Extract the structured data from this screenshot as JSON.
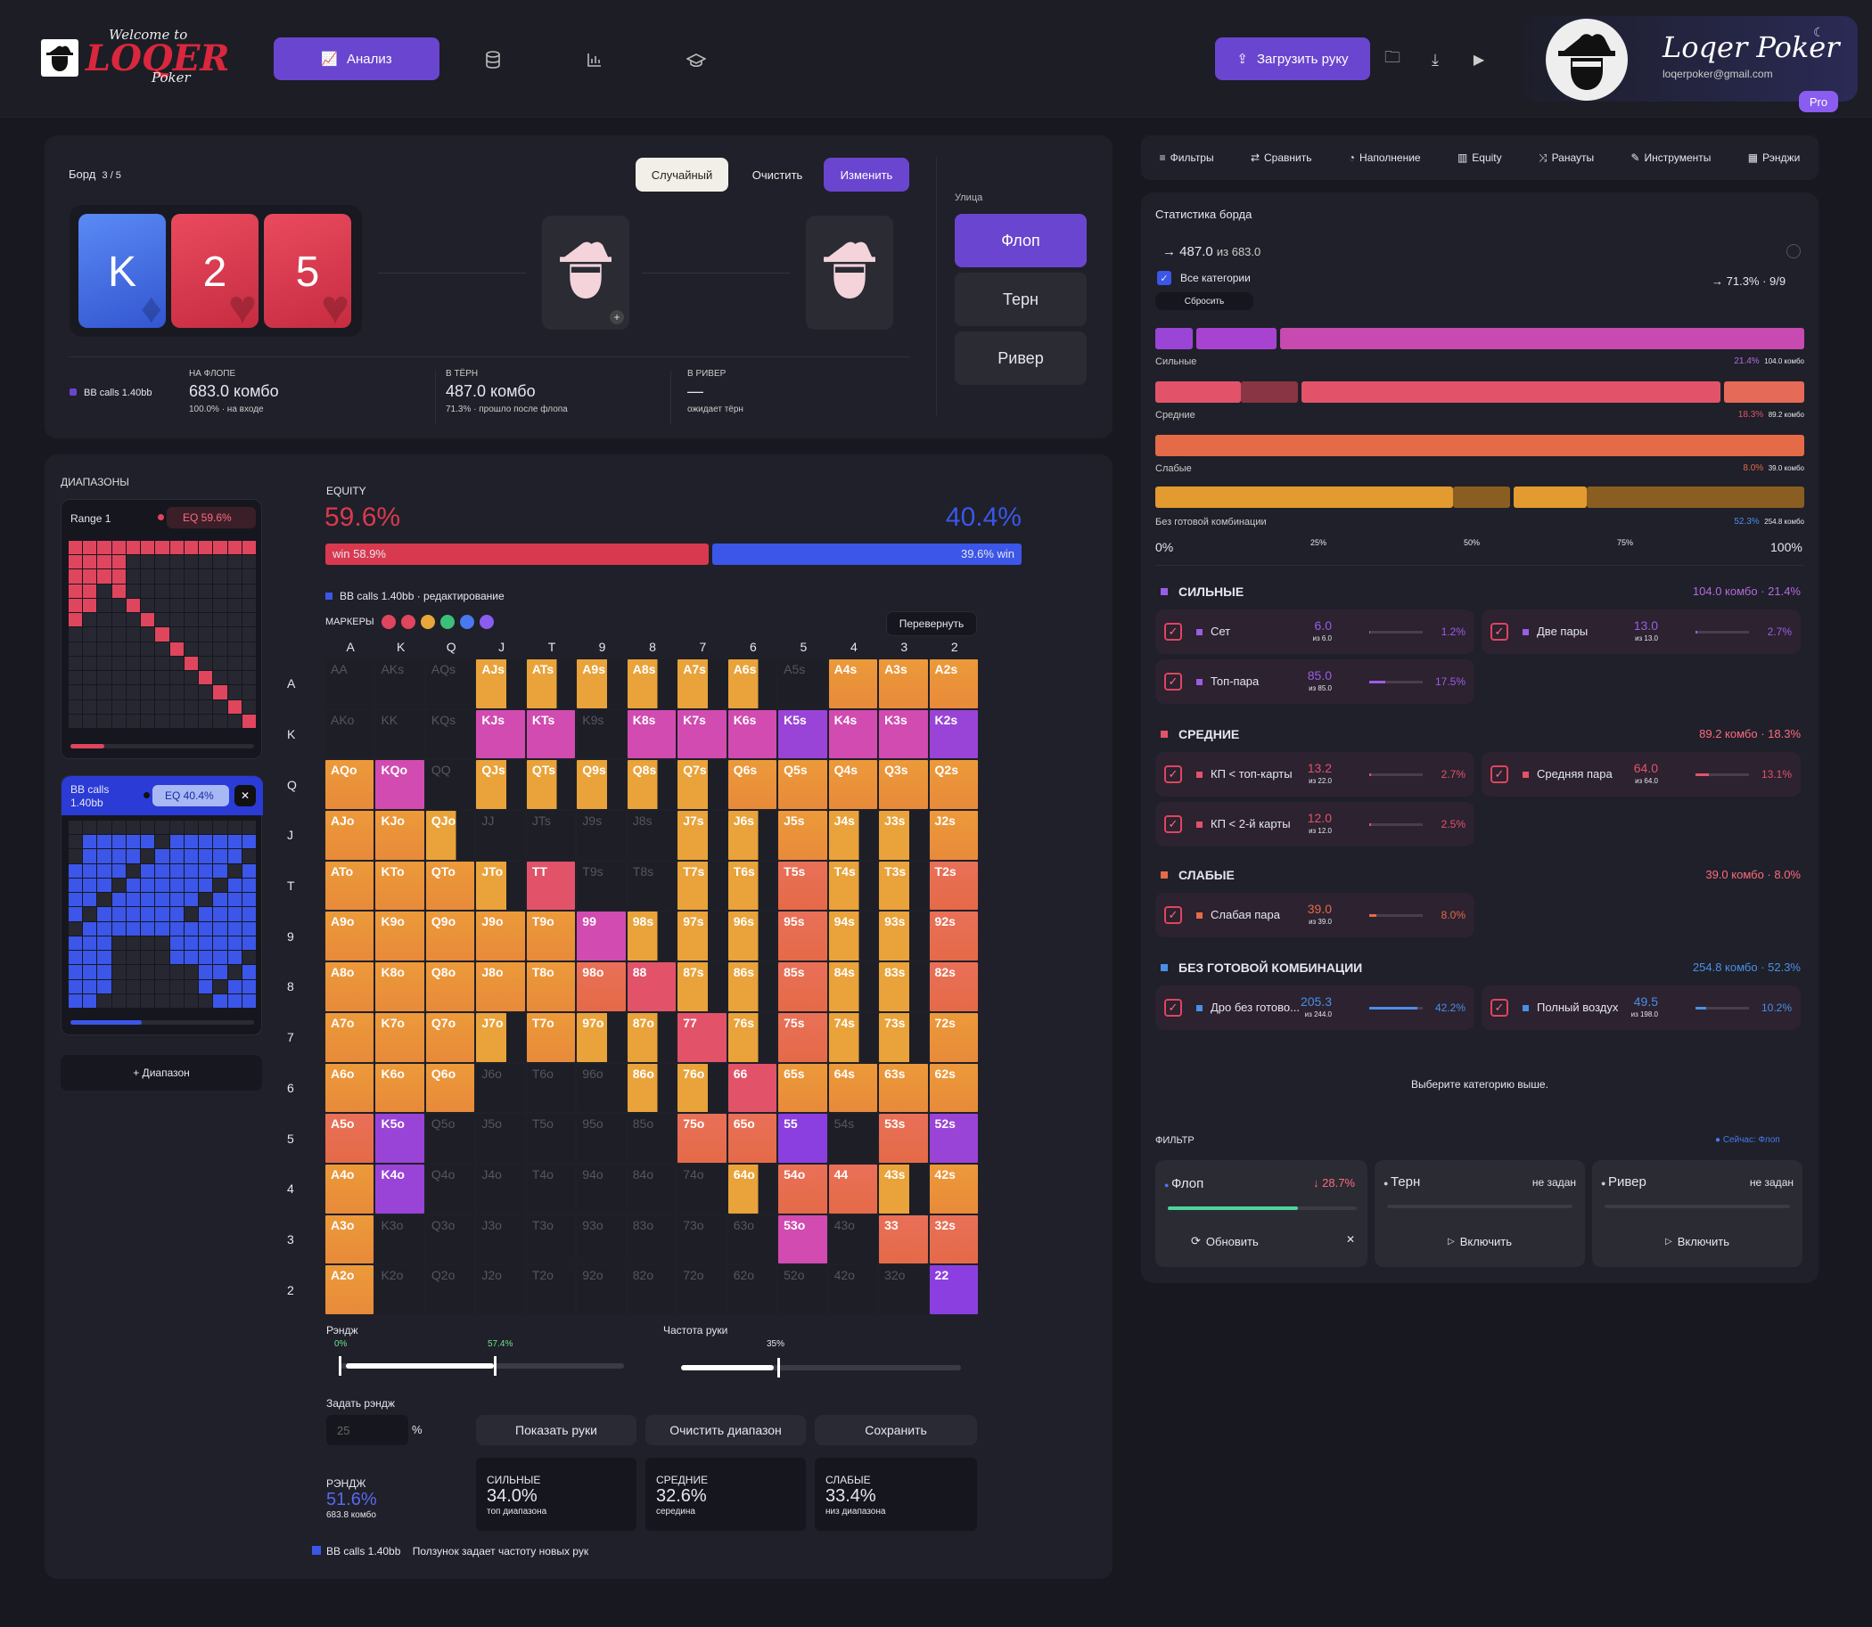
{
  "brand": {
    "logo_top": "Welcome to",
    "logo_main": "LOQER",
    "logo_sub": "Poker"
  },
  "nav": {
    "active_label": "Анализ"
  },
  "header": {
    "upload_label": "Загрузить руку",
    "profile_name": "Loqer Poker",
    "profile_email": "loqerpoker@gmail.com",
    "badge": "Pro"
  },
  "board": {
    "label": "Борд",
    "count": "3 / 5",
    "btn_random": "Случайный",
    "btn_clear": "Очистить",
    "btn_edit": "Изменить",
    "cards": [
      {
        "rank": "K",
        "suit": "♦",
        "color": "#3d6be6"
      },
      {
        "rank": "2",
        "suit": "♥",
        "color": "#d9394f"
      },
      {
        "rank": "5",
        "suit": "♥",
        "color": "#d9394f"
      }
    ],
    "street_label": "Улица",
    "streets": [
      "Флоп",
      "Терн",
      "Ривер"
    ],
    "legend": "BB calls 1.40bb",
    "stats": [
      {
        "label": "НА ФЛОПЕ",
        "value": "683.0 комбо",
        "sub": "100.0% · на входе"
      },
      {
        "label": "В ТЁРН",
        "value": "487.0 комбо",
        "sub": "71.3% · прошло после флопа"
      },
      {
        "label": "В РИВЕР",
        "value": "—",
        "sub": "ожидает тёрн"
      }
    ]
  },
  "ranges": {
    "title": "ДИАПАЗОНЫ",
    "r1_name": "Range 1",
    "r1_eq": "EQ 59.6%",
    "r2_name": "BB calls 1.40bb",
    "r2_eq": "EQ 40.4%",
    "add": "+ Диапазон"
  },
  "equity": {
    "title": "EQUITY",
    "left": "59.6%",
    "right": "40.4%",
    "win_left": "win 58.9%",
    "win_right": "39.6% win",
    "legend": "BB calls 1.40bb",
    "legend_sub": " · редактирование",
    "markers_label": "МАРКЕРЫ",
    "flip": "Перевернуть",
    "marker_colors": [
      "#e0455e",
      "#e0455e",
      "#e8a63a",
      "#3bbf7a",
      "#4a78f0",
      "#8a5cf0"
    ]
  },
  "matrix": {
    "headers": [
      "A",
      "K",
      "Q",
      "J",
      "T",
      "9",
      "8",
      "7",
      "6",
      "5",
      "4",
      "3",
      "2"
    ],
    "cells": [
      [
        "AA",
        "AKs",
        "AQs",
        "AJs",
        "ATs",
        "A9s",
        "A8s",
        "A7s",
        "A6s",
        "A5s",
        "A4s",
        "A3s",
        "A2s"
      ],
      [
        "AKo",
        "KK",
        "KQs",
        "KJs",
        "KTs",
        "K9s",
        "K8s",
        "K7s",
        "K6s",
        "K5s",
        "K4s",
        "K3s",
        "K2s"
      ],
      [
        "AQo",
        "KQo",
        "QQ",
        "QJs",
        "QTs",
        "Q9s",
        "Q8s",
        "Q7s",
        "Q6s",
        "Q5s",
        "Q4s",
        "Q3s",
        "Q2s"
      ],
      [
        "AJo",
        "KJo",
        "QJo",
        "JJ",
        "JTs",
        "J9s",
        "J8s",
        "J7s",
        "J6s",
        "J5s",
        "J4s",
        "J3s",
        "J2s"
      ],
      [
        "ATo",
        "KTo",
        "QTo",
        "JTo",
        "TT",
        "T9s",
        "T8s",
        "T7s",
        "T6s",
        "T5s",
        "T4s",
        "T3s",
        "T2s"
      ],
      [
        "A9o",
        "K9o",
        "Q9o",
        "J9o",
        "T9o",
        "99",
        "98s",
        "97s",
        "96s",
        "95s",
        "94s",
        "93s",
        "92s"
      ],
      [
        "A8o",
        "K8o",
        "Q8o",
        "J8o",
        "T8o",
        "98o",
        "88",
        "87s",
        "86s",
        "85s",
        "84s",
        "83s",
        "82s"
      ],
      [
        "A7o",
        "K7o",
        "Q7o",
        "J7o",
        "T7o",
        "97o",
        "87o",
        "77",
        "76s",
        "75s",
        "74s",
        "73s",
        "72s"
      ],
      [
        "A6o",
        "K6o",
        "Q6o",
        "J6o",
        "T6o",
        "96o",
        "86o",
        "76o",
        "66",
        "65s",
        "64s",
        "63s",
        "62s"
      ],
      [
        "A5o",
        "K5o",
        "Q5o",
        "J5o",
        "T5o",
        "95o",
        "85o",
        "75o",
        "65o",
        "55",
        "54s",
        "53s",
        "52s"
      ],
      [
        "A4o",
        "K4o",
        "Q4o",
        "J4o",
        "T4o",
        "94o",
        "84o",
        "74o",
        "64o",
        "54o",
        "44",
        "43s",
        "42s"
      ],
      [
        "A3o",
        "K3o",
        "Q3o",
        "J3o",
        "T3o",
        "93o",
        "83o",
        "73o",
        "63o",
        "53o",
        "43o",
        "33",
        "32s"
      ],
      [
        "A2o",
        "K2o",
        "Q2o",
        "J2o",
        "T2o",
        "92o",
        "82o",
        "72o",
        "62o",
        "52o",
        "42o",
        "32o",
        "22"
      ]
    ],
    "types": [
      "DDDYYYYYYDOOO",
      "DDDMMDMMMPMMP",
      "OMDYYYYYOOOOO",
      "OOYDDDDYYOYYO",
      "OOOYRDDYYSYYS",
      "OOOOOMYYYSYYS",
      "OOOOOSRYYSYYS",
      "OOOYOYYRYSYYO",
      "OOODDDYYROOOO",
      "SPDDDDDSSVDSP",
      "OPDDDDDDYSSYO",
      "ODDDDDDDDMDSS",
      "ODDDDDDDDDDDV"
    ]
  },
  "sliders": {
    "range_label": "Рэндж",
    "range_min": "0%",
    "range_max": "57.4%",
    "freq_label": "Частота руки",
    "freq_val": "35%"
  },
  "setrange": {
    "label": "Задать рэндж",
    "input": "25",
    "pct": "%",
    "btn_show": "Показать руки",
    "btn_clear": "Очистить диапазон",
    "btn_save": "Сохранить"
  },
  "summary": [
    {
      "label": "РЭНДЖ",
      "value": "51.6%",
      "sub": "683.8 комбо"
    },
    {
      "label": "СИЛЬНЫЕ",
      "value": "34.0%",
      "sub": "топ диапазона"
    },
    {
      "label": "СРЕДНИЕ",
      "value": "32.6%",
      "sub": "середина"
    },
    {
      "label": "СЛАБЫЕ",
      "value": "33.4%",
      "sub": "низ диапазона"
    }
  ],
  "footer": {
    "legend": "BB calls 1.40bb",
    "note": "Ползунок задает частоту новых рук"
  },
  "tabs": [
    "Фильтры",
    "Сравнить",
    "Наполнение",
    "Equity",
    "Ранауты",
    "Инструменты",
    "Рэнджи"
  ],
  "stats": {
    "title": "Статистика борда",
    "combos": "487.0",
    "combos_of": "из 683.0",
    "all_cats": "Все категории",
    "reset": "Сбросить",
    "right": "71.3% · 9/9",
    "bars": [
      {
        "name": "Сильные",
        "pct": "21.4%",
        "cnt": "104.0 комбо",
        "color": "#c64ab0"
      },
      {
        "name": "Средние",
        "pct": "18.3%",
        "cnt": "89.2 комбо",
        "color": "#e2536a"
      },
      {
        "name": "Слабые",
        "pct": "8.0%",
        "cnt": "39.0 комбо",
        "color": "#e56a48"
      },
      {
        "name": "Без готовой комбинации",
        "pct": "52.3%",
        "cnt": "254.8 комбо",
        "color": "#e39a2e"
      }
    ],
    "axis": [
      "0%",
      "25%",
      "50%",
      "75%",
      "100%"
    ]
  },
  "groups": [
    {
      "title": "СИЛЬНЫЕ",
      "meta": "104.0 комбо · 21.4%",
      "color": "#9b5de5",
      "items": [
        {
          "name": "Сет",
          "val": "6.0",
          "of": "из 6.0",
          "pct": "1.2%",
          "fill": "0.02"
        },
        {
          "name": "Две пары",
          "val": "13.0",
          "of": "из 13.0",
          "pct": "2.7%",
          "fill": "0.03"
        },
        {
          "name": "Топ-пара",
          "val": "85.0",
          "of": "из 85.0",
          "pct": "17.5%",
          "fill": "0.3"
        }
      ]
    },
    {
      "title": "СРЕДНИЕ",
      "meta": "89.2 комбо · 18.3%",
      "color": "#e2536a",
      "items": [
        {
          "name": "КП < топ-карты",
          "val": "13.2",
          "of": "из 22.0",
          "pct": "2.7%",
          "fill": "0.04"
        },
        {
          "name": "Средняя пара",
          "val": "64.0",
          "of": "из 64.0",
          "pct": "13.1%",
          "fill": "0.25"
        },
        {
          "name": "КП < 2-й карты",
          "val": "12.0",
          "of": "из 12.0",
          "pct": "2.5%",
          "fill": "0.04"
        }
      ]
    },
    {
      "title": "СЛАБЫЕ",
      "meta": "39.0 комбо · 8.0%",
      "color": "#e56a48",
      "items": [
        {
          "name": "Слабая пара",
          "val": "39.0",
          "of": "из 39.0",
          "pct": "8.0%",
          "fill": "0.14"
        }
      ]
    },
    {
      "title": "БЕЗ ГОТОВОЙ КОМБИНАЦИИ",
      "meta": "254.8 комбо · 52.3%",
      "color": "#4a8fe6",
      "items": [
        {
          "name": "Дро без готово...",
          "val": "205.3",
          "of": "из 244.0",
          "pct": "42.2%",
          "fill": "0.9"
        },
        {
          "name": "Полный воздух",
          "val": "49.5",
          "of": "из 198.0",
          "pct": "10.2%",
          "fill": "0.2"
        }
      ]
    }
  ],
  "hint": "Выберите категорию выше.",
  "filter": {
    "title": "ФИЛЬТР",
    "now": "Сейчас: Флоп",
    "flop": "Флоп",
    "flop_val": "↓ 28.7%",
    "turn": "Терн",
    "turn_val": "не задан",
    "river": "Ривер",
    "river_val": "не задан",
    "update": "Обновить",
    "enable": "Включить"
  }
}
